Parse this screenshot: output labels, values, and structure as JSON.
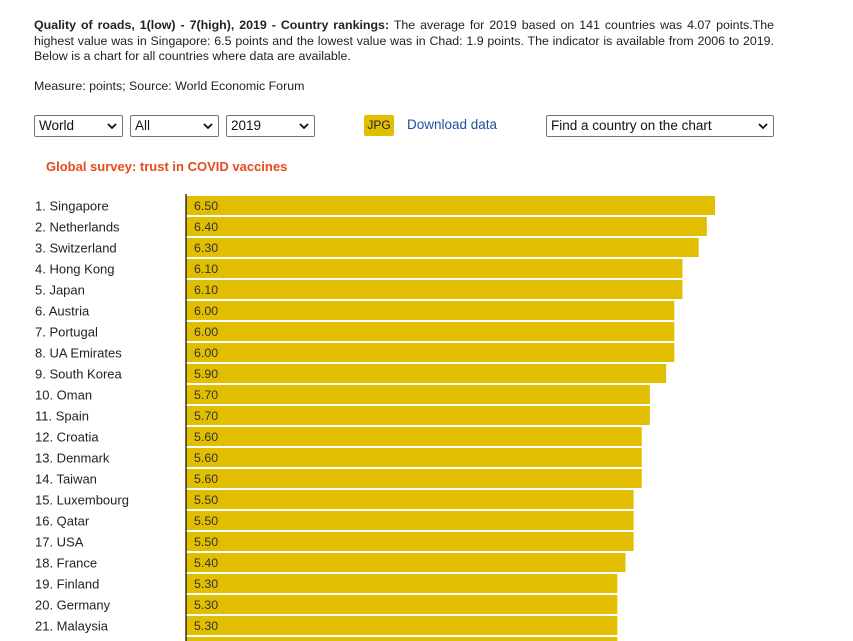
{
  "header": {
    "title": "Quality of roads, 1(low) - 7(high), 2019 - Country rankings:",
    "description": "The average for 2019 based on 141 countries was 4.07 points.The highest value was in Singapore: 6.5 points and the lowest value was in Chad: 1.9 points. The indicator is available from 2006 to 2019. Below is a chart for all countries where data are available.",
    "measure": "Measure: points; Source: World Economic Forum"
  },
  "controls": {
    "region_select": "World",
    "group_select": "All",
    "year_select": "2019",
    "jpg_label": "JPG",
    "download_label": "Download data",
    "country_search": "Find a country on the chart"
  },
  "promo_link": "Global survey: trust in COVID vaccines",
  "colors": {
    "bar": "#e2be00",
    "axis": "#000000",
    "link": "#1f4e9c",
    "promo": "#e84a1a"
  },
  "chart_data": {
    "type": "bar",
    "orientation": "horizontal",
    "categories": [
      "1. Singapore",
      "2. Netherlands",
      "3. Switzerland",
      "4. Hong Kong",
      "5. Japan",
      "6. Austria",
      "7. Portugal",
      "8. UA Emirates",
      "9. South Korea",
      "10. Oman",
      "11. Spain",
      "12. Croatia",
      "13. Denmark",
      "14. Taiwan",
      "15. Luxembourg",
      "16. Qatar",
      "17. USA",
      "18. France",
      "19. Finland",
      "20. Germany",
      "21. Malaysia"
    ],
    "values": [
      6.5,
      6.4,
      6.3,
      6.1,
      6.1,
      6.0,
      6.0,
      6.0,
      5.9,
      5.7,
      5.7,
      5.6,
      5.6,
      5.6,
      5.5,
      5.5,
      5.5,
      5.4,
      5.3,
      5.3,
      5.3
    ],
    "value_labels": [
      "6.50",
      "6.40",
      "6.30",
      "6.10",
      "6.10",
      "6.00",
      "6.00",
      "6.00",
      "5.90",
      "5.70",
      "5.70",
      "5.60",
      "5.60",
      "5.60",
      "5.50",
      "5.50",
      "5.50",
      "5.40",
      "5.30",
      "5.30",
      "5.30"
    ],
    "xlim": [
      0,
      6.5
    ],
    "grid": false,
    "legend": "none"
  }
}
